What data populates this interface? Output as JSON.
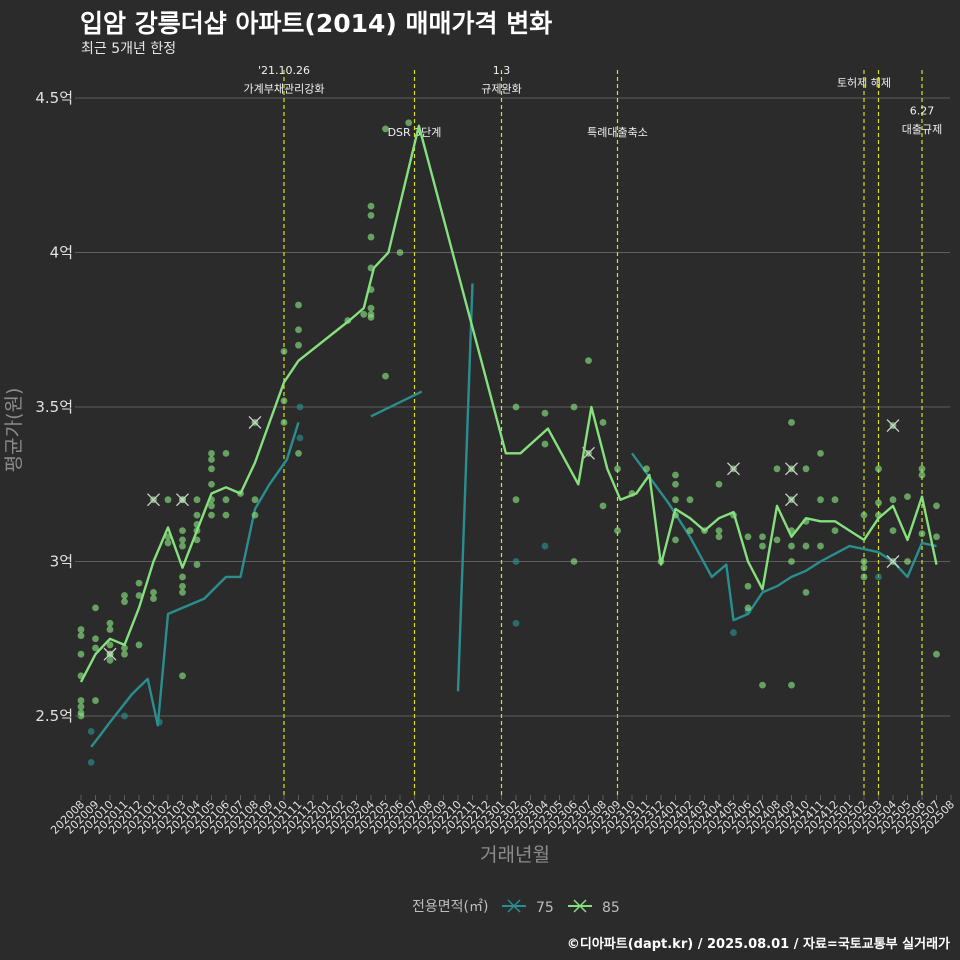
{
  "title": "입암 강릉더샵 아파트(2014) 매매가격 변화",
  "subtitle": "최근 5개년 한정",
  "caption": "©디아파트(dapt.kr) / 2025.08.01 / 자료=국토교통부 실거래가",
  "colors": {
    "background": "#2b2b2b",
    "grid": "#5e5e5e",
    "vline": "#d7e21a",
    "s75": "#2a8e8f",
    "s85": "#86e07e"
  },
  "chart_data": {
    "type": "line",
    "xlabel": "거래년월",
    "ylabel": "평균가(원)",
    "yticks": [
      {
        "v": 2.5,
        "label": "2.5억"
      },
      {
        "v": 3.0,
        "label": "3억"
      },
      {
        "v": 3.5,
        "label": "3.5억"
      },
      {
        "v": 4.0,
        "label": "4억"
      },
      {
        "v": 4.5,
        "label": "4.5억"
      }
    ],
    "ylim": [
      2.23,
      4.6
    ],
    "x_categories": [
      "202008",
      "202009",
      "202010",
      "202011",
      "202012",
      "202101",
      "202102",
      "202103",
      "202104",
      "202105",
      "202106",
      "202107",
      "202108",
      "202109",
      "202110",
      "202111",
      "202112",
      "202201",
      "202202",
      "202203",
      "202204",
      "202205",
      "202206",
      "202207",
      "202208",
      "202209",
      "202210",
      "202211",
      "202212",
      "202301",
      "202302",
      "202303",
      "202304",
      "202305",
      "202306",
      "202307",
      "202308",
      "202309",
      "202310",
      "202311",
      "202312",
      "202401",
      "202402",
      "202403",
      "202404",
      "202405",
      "202406",
      "202407",
      "202408",
      "202409",
      "202410",
      "202411",
      "202412",
      "202501",
      "202502",
      "202503",
      "202504",
      "202505",
      "202506",
      "202507",
      "202508"
    ],
    "legend": {
      "title": "전용면적(㎡)",
      "position": "bottom"
    },
    "vlines": [
      {
        "x": "202110",
        "labels": [
          "'21.10.26",
          "가계부채관리강화"
        ],
        "label_y": [
          4.59,
          4.53
        ]
      },
      {
        "x": "202207",
        "labels": [
          "DSR 3단계"
        ],
        "label_y": [
          4.39
        ]
      },
      {
        "x": "202301",
        "labels": [
          "1.3",
          "규제완화"
        ],
        "label_y": [
          4.59,
          4.53
        ]
      },
      {
        "x": "202309",
        "labels": [
          "특례대출축소"
        ],
        "label_y": [
          4.39
        ]
      },
      {
        "x": "202502",
        "labels": [
          "토허제 해제"
        ],
        "label_y": [
          4.55
        ]
      },
      {
        "x": "202503",
        "labels": [],
        "label_y": []
      },
      {
        "x": "202506",
        "labels": [
          "6.27",
          "대출규제"
        ],
        "label_y": [
          4.46,
          4.4
        ]
      }
    ],
    "series": [
      {
        "name": "75",
        "color": "#2a8e8f",
        "line_segments": [
          [
            [
              0.7,
              2.4
            ],
            [
              1.2,
              2.43
            ],
            [
              2.0,
              2.48
            ],
            [
              3.5,
              2.57
            ],
            [
              4.6,
              2.62
            ],
            [
              5.3,
              2.47
            ],
            [
              6.0,
              2.83
            ],
            [
              8.5,
              2.88
            ],
            [
              10.0,
              2.95
            ],
            [
              11.0,
              2.95
            ],
            [
              12.0,
              3.17
            ],
            [
              13.0,
              3.25
            ],
            [
              14.2,
              3.33
            ],
            [
              15.0,
              3.45
            ]
          ],
          [
            [
              20.0,
              3.47
            ],
            [
              23.5,
              3.55
            ]
          ],
          [
            [
              26.0,
              2.58
            ],
            [
              27.0,
              3.9
            ]
          ],
          [
            [
              38.0,
              3.35
            ],
            [
              40.5,
              3.19
            ],
            [
              42.0,
              3.08
            ],
            [
              43.5,
              2.95
            ],
            [
              44.5,
              2.99
            ],
            [
              45.0,
              2.81
            ],
            [
              46.0,
              2.83
            ],
            [
              47.0,
              2.9
            ],
            [
              48.0,
              2.92
            ],
            [
              49.0,
              2.95
            ],
            [
              50.0,
              2.97
            ],
            [
              51.0,
              3.0
            ],
            [
              53.0,
              3.05
            ],
            [
              54.0,
              3.04
            ],
            [
              55.0,
              3.03
            ],
            [
              56.0,
              3.0
            ],
            [
              57.0,
              2.95
            ],
            [
              58.0,
              3.06
            ],
            [
              59.0,
              3.05
            ]
          ]
        ],
        "points": [
          [
            0.7,
            2.45
          ],
          [
            0.7,
            2.35
          ],
          [
            3.0,
            2.5
          ],
          [
            5.4,
            2.48
          ],
          [
            15.1,
            3.5
          ],
          [
            15.1,
            3.4
          ],
          [
            30.0,
            2.8
          ],
          [
            30.0,
            3.0
          ],
          [
            32.0,
            3.05
          ],
          [
            45.0,
            2.77
          ],
          [
            46.0,
            2.84
          ],
          [
            55.0,
            2.95
          ]
        ],
        "x_marks": []
      },
      {
        "name": "85",
        "color": "#86e07e",
        "line_segments": [
          [
            [
              0,
              2.61
            ],
            [
              1,
              2.7
            ],
            [
              2,
              2.75
            ],
            [
              3,
              2.73
            ],
            [
              4,
              2.85
            ],
            [
              5,
              3.0
            ],
            [
              6,
              3.11
            ],
            [
              7,
              2.98
            ],
            [
              8,
              3.1
            ],
            [
              9,
              3.22
            ],
            [
              10,
              3.24
            ],
            [
              11,
              3.22
            ],
            [
              12,
              3.32
            ],
            [
              13,
              3.45
            ],
            [
              14,
              3.58
            ],
            [
              15,
              3.65
            ],
            [
              18.5,
              3.78
            ],
            [
              19.5,
              3.82
            ],
            [
              20.2,
              3.95
            ],
            [
              21.2,
              4.0
            ],
            [
              23.3,
              4.41
            ],
            [
              29.3,
              3.35
            ],
            [
              30.3,
              3.35
            ],
            [
              32.2,
              3.43
            ],
            [
              34.3,
              3.25
            ],
            [
              35.2,
              3.5
            ],
            [
              36.3,
              3.3
            ],
            [
              37.2,
              3.2
            ],
            [
              38.3,
              3.22
            ],
            [
              39.2,
              3.28
            ],
            [
              40.0,
              2.99
            ],
            [
              41.0,
              3.17
            ],
            [
              42.0,
              3.14
            ],
            [
              43.0,
              3.1
            ],
            [
              44.0,
              3.14
            ],
            [
              45.0,
              3.16
            ],
            [
              46.0,
              3.0
            ],
            [
              47.0,
              2.91
            ],
            [
              48.0,
              3.18
            ],
            [
              49.0,
              3.08
            ],
            [
              50.0,
              3.14
            ],
            [
              51.0,
              3.13
            ],
            [
              52.0,
              3.13
            ],
            [
              53.0,
              3.1
            ],
            [
              54.0,
              3.07
            ],
            [
              55.0,
              3.14
            ],
            [
              56.0,
              3.18
            ],
            [
              57.0,
              3.07
            ],
            [
              58.0,
              3.21
            ],
            [
              59.0,
              2.99
            ]
          ]
        ],
        "points": [
          [
            0,
            2.78
          ],
          [
            0,
            2.76
          ],
          [
            0,
            2.7
          ],
          [
            0,
            2.63
          ],
          [
            0,
            2.55
          ],
          [
            0,
            2.53
          ],
          [
            0,
            2.51
          ],
          [
            0,
            2.5
          ],
          [
            1,
            2.85
          ],
          [
            1,
            2.75
          ],
          [
            1,
            2.72
          ],
          [
            1,
            2.55
          ],
          [
            2,
            2.8
          ],
          [
            2,
            2.78
          ],
          [
            2,
            2.73
          ],
          [
            2,
            2.7
          ],
          [
            2,
            2.68
          ],
          [
            3,
            2.89
          ],
          [
            3,
            2.87
          ],
          [
            3,
            2.72
          ],
          [
            3,
            2.7
          ],
          [
            4,
            2.93
          ],
          [
            4,
            2.73
          ],
          [
            4,
            2.89
          ],
          [
            5,
            2.9
          ],
          [
            5,
            2.88
          ],
          [
            6,
            3.2
          ],
          [
            6,
            3.08
          ],
          [
            6,
            3.06
          ],
          [
            7,
            3.2
          ],
          [
            7,
            3.1
          ],
          [
            7,
            3.07
          ],
          [
            7,
            3.05
          ],
          [
            7,
            2.95
          ],
          [
            7,
            2.92
          ],
          [
            7,
            2.9
          ],
          [
            7,
            2.63
          ],
          [
            8,
            3.2
          ],
          [
            8,
            3.15
          ],
          [
            8,
            3.12
          ],
          [
            8,
            3.1
          ],
          [
            8,
            3.07
          ],
          [
            8,
            2.99
          ],
          [
            9,
            3.35
          ],
          [
            9,
            3.33
          ],
          [
            9,
            3.3
          ],
          [
            9,
            3.25
          ],
          [
            9,
            3.2
          ],
          [
            9,
            3.18
          ],
          [
            9,
            3.15
          ],
          [
            10,
            3.35
          ],
          [
            10,
            3.2
          ],
          [
            10,
            3.15
          ],
          [
            11,
            3.22
          ],
          [
            12,
            3.2
          ],
          [
            12,
            3.15
          ],
          [
            14,
            3.68
          ],
          [
            14,
            3.52
          ],
          [
            14,
            3.45
          ],
          [
            15,
            3.83
          ],
          [
            15,
            3.75
          ],
          [
            15,
            3.7
          ],
          [
            15,
            3.35
          ],
          [
            18.4,
            3.78
          ],
          [
            19.5,
            3.8
          ],
          [
            20,
            4.15
          ],
          [
            20,
            4.12
          ],
          [
            20,
            4.05
          ],
          [
            20,
            3.95
          ],
          [
            20,
            3.88
          ],
          [
            20,
            3.82
          ],
          [
            20,
            3.8
          ],
          [
            20,
            3.79
          ],
          [
            21,
            3.6
          ],
          [
            22,
            4.0
          ],
          [
            21,
            4.4
          ],
          [
            22.6,
            4.42
          ],
          [
            30,
            3.5
          ],
          [
            30,
            3.2
          ],
          [
            32,
            3.48
          ],
          [
            32,
            3.38
          ],
          [
            34,
            3.5
          ],
          [
            34,
            3.0
          ],
          [
            35,
            3.65
          ],
          [
            36,
            3.45
          ],
          [
            36,
            3.18
          ],
          [
            37,
            3.3
          ],
          [
            37,
            3.1
          ],
          [
            38,
            3.22
          ],
          [
            39,
            3.3
          ],
          [
            40,
            3.0
          ],
          [
            41,
            3.28
          ],
          [
            41,
            3.25
          ],
          [
            41,
            3.2
          ],
          [
            41,
            3.15
          ],
          [
            41,
            3.07
          ],
          [
            42,
            3.2
          ],
          [
            42,
            3.1
          ],
          [
            43,
            3.1
          ],
          [
            44,
            3.25
          ],
          [
            44,
            3.1
          ],
          [
            44,
            3.08
          ],
          [
            45,
            3.15
          ],
          [
            46,
            3.08
          ],
          [
            46,
            2.92
          ],
          [
            46,
            2.85
          ],
          [
            47,
            3.08
          ],
          [
            47,
            3.05
          ],
          [
            47,
            2.6
          ],
          [
            48,
            3.3
          ],
          [
            48,
            3.07
          ],
          [
            49,
            3.45
          ],
          [
            49,
            3.1
          ],
          [
            49,
            3.05
          ],
          [
            49,
            3.0
          ],
          [
            49,
            2.6
          ],
          [
            50,
            3.3
          ],
          [
            50,
            3.13
          ],
          [
            50,
            3.05
          ],
          [
            50,
            2.9
          ],
          [
            51,
            3.35
          ],
          [
            51,
            3.2
          ],
          [
            51,
            3.05
          ],
          [
            52,
            3.2
          ],
          [
            52,
            3.1
          ],
          [
            54,
            3.15
          ],
          [
            54,
            3.0
          ],
          [
            54,
            2.98
          ],
          [
            54,
            2.95
          ],
          [
            55,
            3.3
          ],
          [
            55,
            3.19
          ],
          [
            55,
            3.15
          ],
          [
            56,
            3.2
          ],
          [
            56,
            3.1
          ],
          [
            57,
            3.21
          ],
          [
            57,
            3.0
          ],
          [
            58,
            3.3
          ],
          [
            58,
            3.28
          ],
          [
            58,
            3.09
          ],
          [
            59,
            3.18
          ],
          [
            59,
            3.08
          ],
          [
            59,
            2.7
          ]
        ],
        "x_marks": [
          [
            2,
            2.7
          ],
          [
            5,
            3.2
          ],
          [
            7,
            3.2
          ],
          [
            12,
            3.45
          ],
          [
            35,
            3.35
          ],
          [
            45,
            3.3
          ],
          [
            49,
            3.3
          ],
          [
            49,
            3.2
          ],
          [
            56,
            3.44
          ],
          [
            56,
            3.0
          ]
        ]
      }
    ]
  }
}
